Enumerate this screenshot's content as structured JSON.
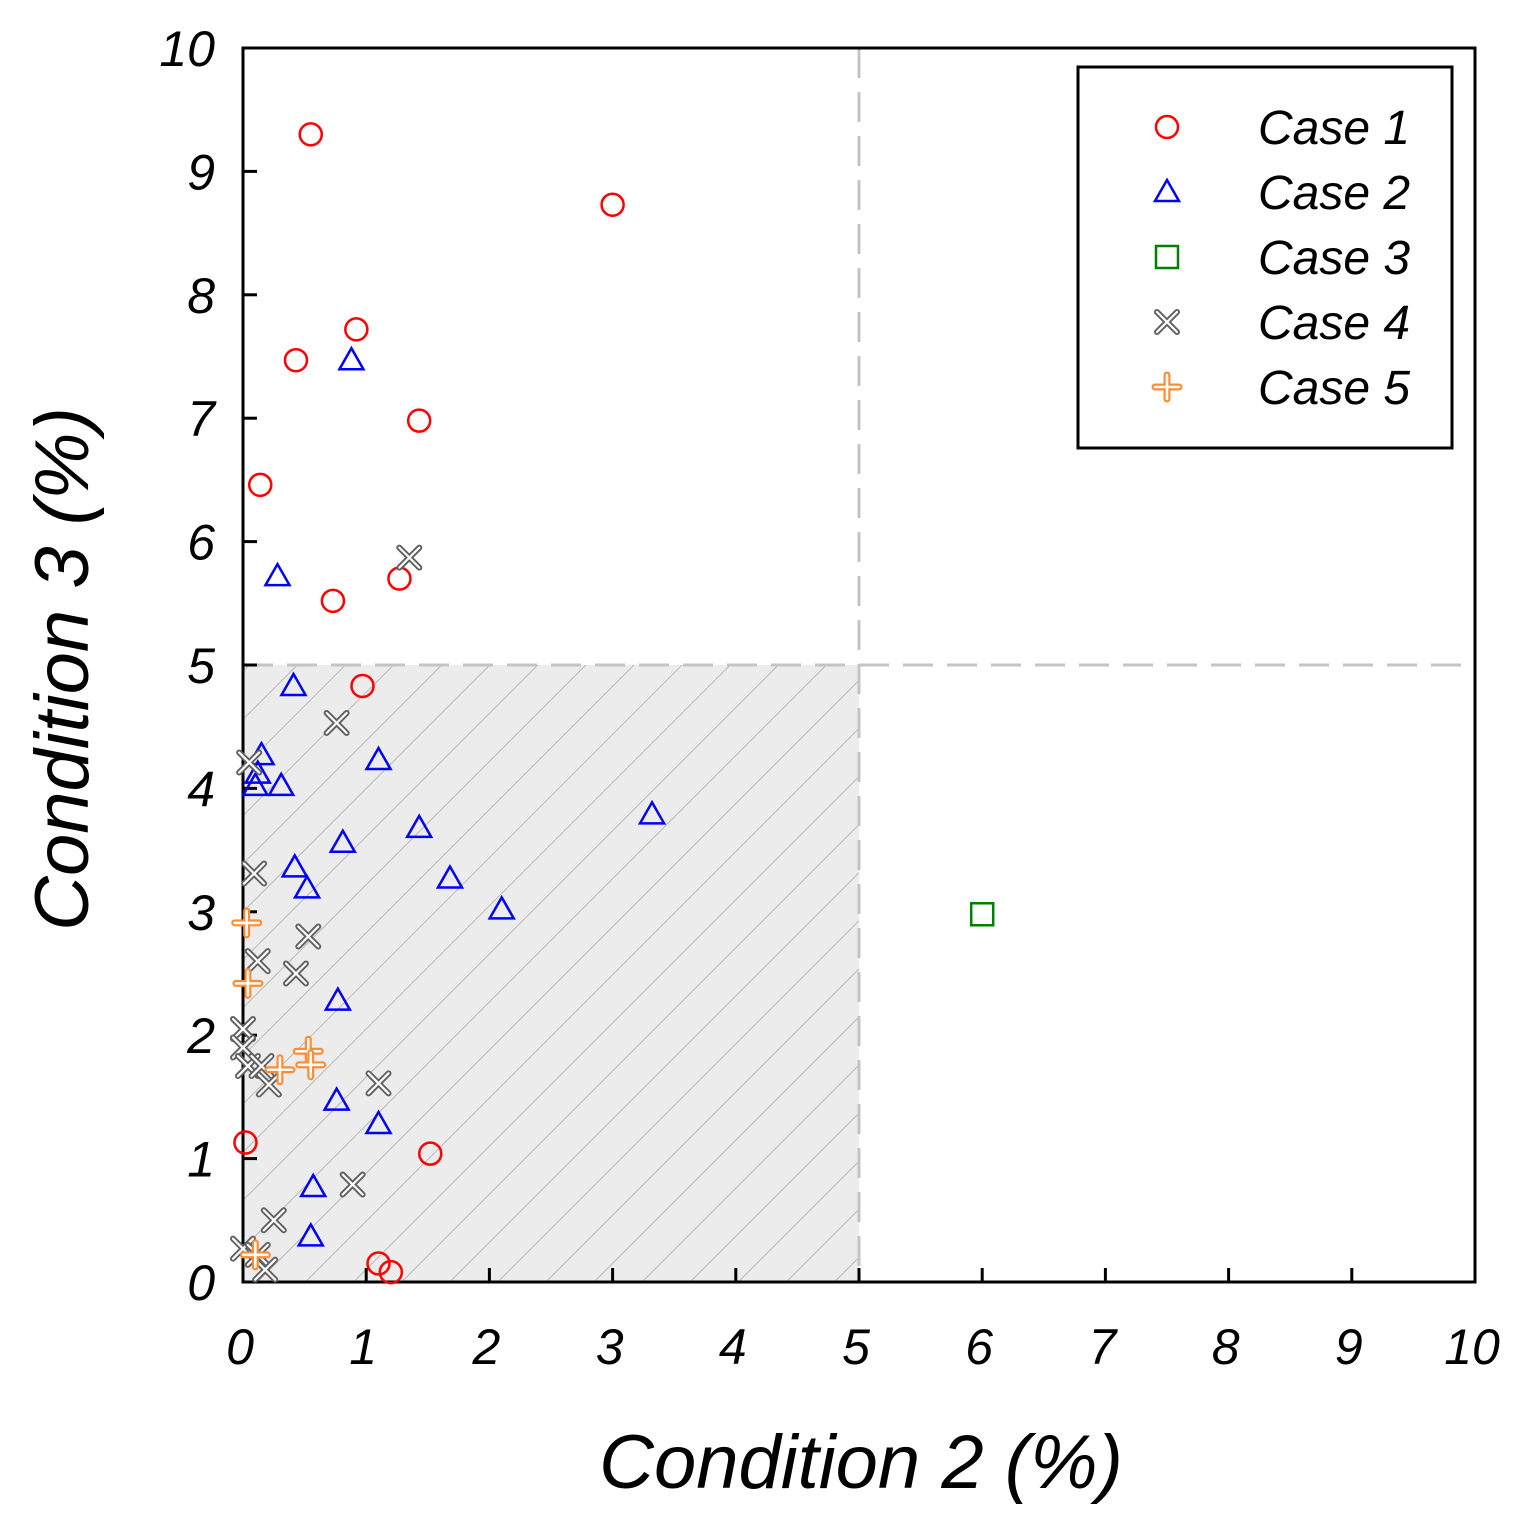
{
  "chart_data": {
    "type": "scatter",
    "title": "",
    "xlabel": "Condition 2 (%)",
    "ylabel": "Condition 3 (%)",
    "xlim": [
      0,
      10
    ],
    "ylim": [
      0,
      10
    ],
    "xticks": [
      "0",
      "1",
      "2",
      "3",
      "4",
      "5",
      "6",
      "7",
      "8",
      "9",
      "10"
    ],
    "yticks": [
      "0",
      "1",
      "2",
      "3",
      "4",
      "5",
      "6",
      "7",
      "8",
      "9",
      "10"
    ],
    "grid": false,
    "legend_position": "top-right",
    "thresholds": {
      "x": 5,
      "y": 5
    },
    "shaded_region": {
      "x": [
        0,
        5
      ],
      "y": [
        0,
        5
      ],
      "pattern": "diagonal-hatch"
    },
    "series": [
      {
        "name": "Case 1",
        "marker": "circle",
        "color": "#ff0000",
        "points": [
          [
            0.55,
            9.3
          ],
          [
            3.0,
            8.73
          ],
          [
            0.92,
            7.72
          ],
          [
            0.43,
            7.47
          ],
          [
            1.43,
            6.98
          ],
          [
            0.14,
            6.46
          ],
          [
            1.27,
            5.7
          ],
          [
            0.73,
            5.52
          ],
          [
            0.97,
            4.83
          ],
          [
            0.02,
            1.13
          ],
          [
            1.52,
            1.04
          ],
          [
            1.1,
            0.15
          ],
          [
            1.2,
            0.08
          ]
        ]
      },
      {
        "name": "Case 2",
        "marker": "triangle",
        "color": "#0000ff",
        "points": [
          [
            0.88,
            7.47
          ],
          [
            0.28,
            5.72
          ],
          [
            0.41,
            4.83
          ],
          [
            0.15,
            4.27
          ],
          [
            0.12,
            4.12
          ],
          [
            0.1,
            4.02
          ],
          [
            0.31,
            4.02
          ],
          [
            1.1,
            4.23
          ],
          [
            3.32,
            3.79
          ],
          [
            1.43,
            3.68
          ],
          [
            0.81,
            3.56
          ],
          [
            0.42,
            3.36
          ],
          [
            1.68,
            3.27
          ],
          [
            0.52,
            3.19
          ],
          [
            2.1,
            3.02
          ],
          [
            0.77,
            2.28
          ],
          [
            0.76,
            1.47
          ],
          [
            1.1,
            1.28
          ],
          [
            0.57,
            0.77
          ],
          [
            0.55,
            0.37
          ]
        ]
      },
      {
        "name": "Case 3",
        "marker": "square",
        "color": "#008000",
        "points": [
          [
            6.0,
            2.98
          ]
        ]
      },
      {
        "name": "Case 4",
        "marker": "x",
        "color": "#606060",
        "points": [
          [
            1.35,
            5.87
          ],
          [
            0.76,
            4.53
          ],
          [
            0.05,
            4.21
          ],
          [
            0.09,
            3.31
          ],
          [
            0.53,
            2.8
          ],
          [
            0.12,
            2.6
          ],
          [
            0.43,
            2.5
          ],
          [
            0.0,
            2.05
          ],
          [
            0.0,
            1.9
          ],
          [
            0.04,
            1.75
          ],
          [
            0.15,
            1.75
          ],
          [
            0.21,
            1.6
          ],
          [
            1.1,
            1.61
          ],
          [
            0.89,
            0.79
          ],
          [
            0.25,
            0.5
          ],
          [
            0.0,
            0.27
          ],
          [
            0.12,
            0.22
          ],
          [
            0.18,
            0.1
          ]
        ]
      },
      {
        "name": "Case 5",
        "marker": "plus",
        "color": "#ff8c33",
        "points": [
          [
            0.03,
            2.91
          ],
          [
            0.04,
            2.42
          ],
          [
            0.3,
            1.72
          ],
          [
            0.53,
            1.87
          ],
          [
            0.55,
            1.76
          ],
          [
            0.1,
            0.22
          ]
        ]
      }
    ]
  }
}
